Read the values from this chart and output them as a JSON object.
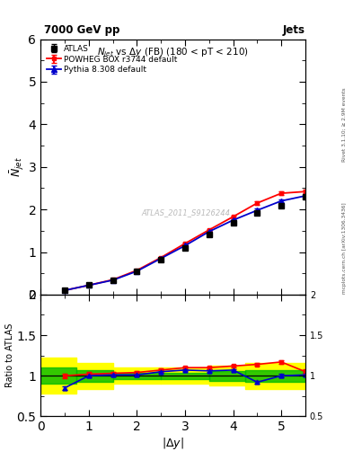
{
  "title_top": "7000 GeV pp",
  "title_top_right": "Jets",
  "title_main": "$N_{jet}$ vs $\\Delta y$ (FB) (180 < pT < 210)",
  "ylabel_main": "$\\bar{N}_{jet}$",
  "ylabel_ratio": "Ratio to ATLAS",
  "xlabel": "$|\\Delta y|$",
  "right_label_top": "Rivet 3.1.10; ≥ 2.9M events",
  "right_label_bot": "mcplots.cern.ch [arXiv:1306.3436]",
  "watermark": "ATLAS_2011_S9126244",
  "xlim": [
    0,
    5.5
  ],
  "ylim_main": [
    0,
    6
  ],
  "ylim_ratio": [
    0.5,
    2.0
  ],
  "atlas_x": [
    0.5,
    1.0,
    1.5,
    2.0,
    2.5,
    3.0,
    3.5,
    4.0,
    4.5,
    5.0,
    5.5
  ],
  "atlas_y": [
    0.1,
    0.22,
    0.34,
    0.55,
    0.82,
    1.1,
    1.42,
    1.68,
    1.92,
    2.08,
    2.3
  ],
  "atlas_yerr": [
    0.005,
    0.008,
    0.01,
    0.013,
    0.018,
    0.022,
    0.028,
    0.032,
    0.038,
    0.04,
    0.05
  ],
  "powheg_x": [
    0.5,
    1.0,
    1.5,
    2.0,
    2.5,
    3.0,
    3.5,
    4.0,
    4.5,
    5.0,
    5.5
  ],
  "powheg_y": [
    0.1,
    0.22,
    0.35,
    0.57,
    0.87,
    1.2,
    1.52,
    1.83,
    2.15,
    2.38,
    2.42
  ],
  "powheg_yerr": [
    0.004,
    0.007,
    0.009,
    0.012,
    0.016,
    0.02,
    0.025,
    0.03,
    0.035,
    0.038,
    0.045
  ],
  "pythia_x": [
    0.5,
    1.0,
    1.5,
    2.0,
    2.5,
    3.0,
    3.5,
    4.0,
    4.5,
    5.0,
    5.5
  ],
  "pythia_y": [
    0.1,
    0.22,
    0.34,
    0.55,
    0.85,
    1.15,
    1.48,
    1.75,
    1.98,
    2.2,
    2.32
  ],
  "pythia_yerr": [
    0.004,
    0.007,
    0.009,
    0.012,
    0.016,
    0.02,
    0.025,
    0.03,
    0.035,
    0.038,
    0.045
  ],
  "ratio_powheg_x": [
    0.5,
    1.0,
    1.5,
    2.0,
    2.5,
    3.0,
    3.5,
    4.0,
    4.5,
    5.0,
    5.5
  ],
  "ratio_powheg_y": [
    1.0,
    1.02,
    1.03,
    1.04,
    1.07,
    1.1,
    1.1,
    1.12,
    1.14,
    1.17,
    1.05
  ],
  "ratio_powheg_yerr": [
    0.03,
    0.025,
    0.022,
    0.02,
    0.018,
    0.018,
    0.017,
    0.017,
    0.018,
    0.02,
    0.025
  ],
  "ratio_pythia_x": [
    0.5,
    1.0,
    1.5,
    2.0,
    2.5,
    3.0,
    3.5,
    4.0,
    4.5,
    5.0,
    5.5
  ],
  "ratio_pythia_y": [
    0.85,
    1.0,
    1.01,
    1.01,
    1.05,
    1.07,
    1.06,
    1.07,
    0.92,
    1.0,
    1.01
  ],
  "ratio_pythia_yerr": [
    0.025,
    0.018,
    0.016,
    0.015,
    0.014,
    0.015,
    0.015,
    0.015,
    0.018,
    0.02,
    0.022
  ],
  "band_x_edges": [
    0.0,
    0.75,
    1.5,
    2.5,
    3.5,
    4.25,
    5.5
  ],
  "band_yellow_lo": [
    0.78,
    0.84,
    0.9,
    0.9,
    0.88,
    0.84,
    0.72
  ],
  "band_yellow_hi": [
    1.22,
    1.16,
    1.1,
    1.1,
    1.12,
    1.16,
    1.28
  ],
  "band_green_lo": [
    0.9,
    0.93,
    0.96,
    0.96,
    0.94,
    0.93,
    0.88
  ],
  "band_green_hi": [
    1.1,
    1.07,
    1.04,
    1.04,
    1.06,
    1.07,
    1.12
  ],
  "color_atlas": "#000000",
  "color_powheg": "#ff0000",
  "color_pythia": "#0000cc",
  "color_green_band": "#00bb00",
  "color_yellow_band": "#ffff00",
  "bg_color": "#ffffff"
}
